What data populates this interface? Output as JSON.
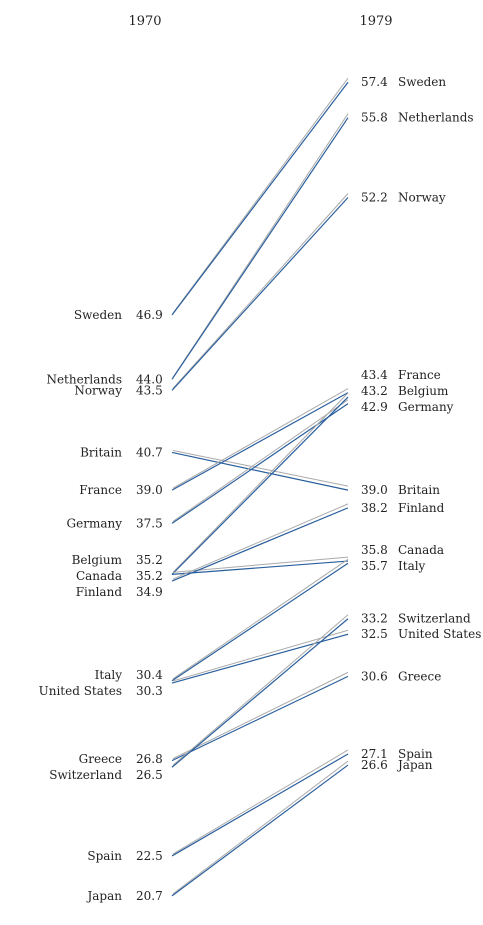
{
  "chart_data": {
    "type": "line",
    "subtype": "slopegraph",
    "x": [
      "1970",
      "1979"
    ],
    "series": [
      {
        "name": "Sweden",
        "values": [
          46.9,
          57.4
        ],
        "labels": [
          "46.9",
          "57.4"
        ]
      },
      {
        "name": "Netherlands",
        "values": [
          44.0,
          55.8
        ],
        "labels": [
          "44.0",
          "55.8"
        ]
      },
      {
        "name": "Norway",
        "values": [
          43.5,
          52.2
        ],
        "labels": [
          "43.5",
          "52.2"
        ]
      },
      {
        "name": "Britain",
        "values": [
          40.7,
          39.0
        ],
        "labels": [
          "40.7",
          "39.0"
        ]
      },
      {
        "name": "France",
        "values": [
          39.0,
          43.4
        ],
        "labels": [
          "39.0",
          "43.4"
        ]
      },
      {
        "name": "Germany",
        "values": [
          37.5,
          42.9
        ],
        "labels": [
          "37.5",
          "42.9"
        ]
      },
      {
        "name": "Belgium",
        "values": [
          35.2,
          43.2
        ],
        "labels": [
          "35.2",
          "43.2"
        ]
      },
      {
        "name": "Canada",
        "values": [
          35.2,
          35.8
        ],
        "labels": [
          "35.2",
          "35.8"
        ]
      },
      {
        "name": "Finland",
        "values": [
          34.9,
          38.2
        ],
        "labels": [
          "34.9",
          "38.2"
        ]
      },
      {
        "name": "Italy",
        "values": [
          30.4,
          35.7
        ],
        "labels": [
          "30.4",
          "35.7"
        ]
      },
      {
        "name": "United States",
        "values": [
          30.3,
          32.5
        ],
        "labels": [
          "30.3",
          "32.5"
        ]
      },
      {
        "name": "Greece",
        "values": [
          26.8,
          30.6
        ],
        "labels": [
          "26.8",
          "30.6"
        ]
      },
      {
        "name": "Switzerland",
        "values": [
          26.5,
          33.2
        ],
        "labels": [
          "26.5",
          "33.2"
        ]
      },
      {
        "name": "Spain",
        "values": [
          22.5,
          27.1
        ],
        "labels": [
          "22.5",
          "27.1"
        ]
      },
      {
        "name": "Japan",
        "values": [
          20.7,
          26.6
        ],
        "labels": [
          "20.7",
          "26.6"
        ]
      }
    ],
    "title": "",
    "xlabel": "",
    "ylabel": "",
    "grid": false,
    "legend": "none",
    "colors": {
      "line": "#2a5f9e",
      "shadow": "#aaaaaa",
      "text": "#222222"
    }
  }
}
